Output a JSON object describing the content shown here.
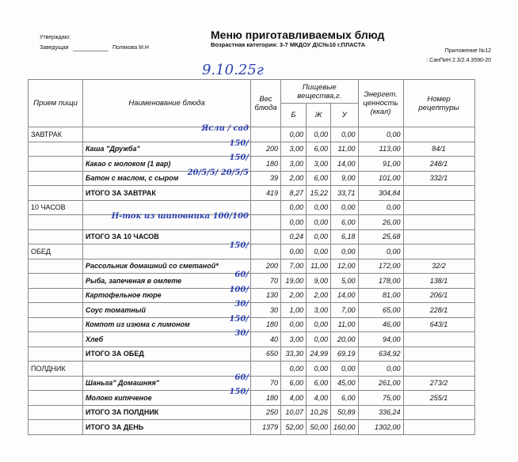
{
  "header": {
    "approve": "Утверждаю:",
    "position": "Заведущая",
    "signer": "Полякова М.Н",
    "title": "Меню приготавливаемых блюд",
    "subtitle": "Возрастная категория: 3-7 МКДОУ Д\\С№10 г.ПЛАСТА",
    "appendix": "Приложение №12",
    "sanpin": ": СанПиН 2.3/2.4.3590-20",
    "handwritten_date": "9.10.25г"
  },
  "columns": {
    "meal": "Прием пищи",
    "dish": "Наименование    блюда",
    "weight": "Вес блюда",
    "nutrients": "Пищевые вещества,г.",
    "b": "Б",
    "zh": "Ж",
    "u": "У",
    "energy": "Энергет. ценность (ккал)",
    "recipe": "Номер рецептуры"
  },
  "rows": [
    {
      "meal": "ЗАВТРАК",
      "name": "",
      "weight": "",
      "b": "0,00",
      "zh": "0,00",
      "u": "0,00",
      "kcal": "0,00",
      "recipe": "",
      "type": "section",
      "note": "Ясли / сад"
    },
    {
      "meal": "",
      "name": "Каша \"Дружба\"",
      "weight": "200",
      "b": "3,00",
      "zh": "6,00",
      "u": "11,00",
      "kcal": "113,00",
      "recipe": "84/1",
      "type": "dish",
      "note": "150/"
    },
    {
      "meal": "",
      "name": "Какао с молоком (1 вар)",
      "weight": "180",
      "b": "3,00",
      "zh": "3,00",
      "u": "14,00",
      "kcal": "91,00",
      "recipe": "248/1",
      "type": "dish",
      "note": "150/"
    },
    {
      "meal": "",
      "name": "Батон с маслом, с сыром",
      "weight": "39",
      "b": "2,00",
      "zh": "6,00",
      "u": "9,00",
      "kcal": "101,00",
      "recipe": "332/1",
      "type": "dish",
      "note": "20/5/5/ 20/5/5"
    },
    {
      "meal": "",
      "name": "ИТОГО ЗА ЗАВТРАК",
      "weight": "419",
      "b": "8,27",
      "zh": "15,22",
      "u": "33,71",
      "kcal": "304,84",
      "recipe": "",
      "type": "total",
      "note": ""
    },
    {
      "meal": "10 ЧАСОВ",
      "name": "",
      "weight": "",
      "b": "0,00",
      "zh": "0,00",
      "u": "0,00",
      "kcal": "0,00",
      "recipe": "",
      "type": "section",
      "note": ""
    },
    {
      "meal": "",
      "name": "",
      "weight": "",
      "b": "0,00",
      "zh": "0,00",
      "u": "6,00",
      "kcal": "26,00",
      "recipe": "",
      "type": "dish",
      "note": "Н-ток из шиповника 100/100"
    },
    {
      "meal": "",
      "name": "ИТОГО ЗА 10 ЧАСОВ",
      "weight": "",
      "b": "0,24",
      "zh": "0,00",
      "u": "6,18",
      "kcal": "25,68",
      "recipe": "",
      "type": "total",
      "note": ""
    },
    {
      "meal": "ОБЕД",
      "name": "",
      "weight": "",
      "b": "0,00",
      "zh": "0,00",
      "u": "0,00",
      "kcal": "0,00",
      "recipe": "",
      "type": "section",
      "note": "150/"
    },
    {
      "meal": "",
      "name": "Рассольник домашний со сметаной*",
      "weight": "200",
      "b": "7,00",
      "zh": "11,00",
      "u": "12,00",
      "kcal": "172,00",
      "recipe": "32/2",
      "type": "dish",
      "note": ""
    },
    {
      "meal": "",
      "name": "Рыба, запеченая в омлете",
      "weight": "70",
      "b": "19,00",
      "zh": "9,00",
      "u": "5,00",
      "kcal": "178,00",
      "recipe": "138/1",
      "type": "dish",
      "note": "60/"
    },
    {
      "meal": "",
      "name": "Картофельное пюре",
      "weight": "130",
      "b": "2,00",
      "zh": "2,00",
      "u": "14,00",
      "kcal": "81,00",
      "recipe": "206/1",
      "type": "dish",
      "note": "100/"
    },
    {
      "meal": "",
      "name": "Соус томатный",
      "weight": "30",
      "b": "1,00",
      "zh": "3,00",
      "u": "7,00",
      "kcal": "65,00",
      "recipe": "228/1",
      "type": "dish",
      "note": "30/"
    },
    {
      "meal": "",
      "name": "Компот из изюма с лимоном",
      "weight": "180",
      "b": "0,00",
      "zh": "0,00",
      "u": "11,00",
      "kcal": "46,00",
      "recipe": "643/1",
      "type": "dish",
      "note": "150/"
    },
    {
      "meal": "",
      "name": "Хлеб",
      "weight": "40",
      "b": "3,00",
      "zh": "0,00",
      "u": "20,00",
      "kcal": "94,00",
      "recipe": "",
      "type": "dish",
      "note": "30/"
    },
    {
      "meal": "",
      "name": "ИТОГО ЗА ОБЕД",
      "weight": "650",
      "b": "33,30",
      "zh": "24,99",
      "u": "69,19",
      "kcal": "634,92",
      "recipe": "",
      "type": "total",
      "note": ""
    },
    {
      "meal": "ПОЛДНИК",
      "name": "",
      "weight": "",
      "b": "0,00",
      "zh": "0,00",
      "u": "0,00",
      "kcal": "0,00",
      "recipe": "",
      "type": "section",
      "note": ""
    },
    {
      "meal": "",
      "name": "Шаньга\" Домашняя\"",
      "weight": "70",
      "b": "6,00",
      "zh": "6,00",
      "u": "45,00",
      "kcal": "261,00",
      "recipe": "273/2",
      "type": "dish",
      "note": "60/"
    },
    {
      "meal": "",
      "name": "Молоко кипяченое",
      "weight": "180",
      "b": "4,00",
      "zh": "4,00",
      "u": "6,00",
      "kcal": "75,00",
      "recipe": "255/1",
      "type": "dish",
      "note": "150/"
    },
    {
      "meal": "",
      "name": "ИТОГО ЗА ПОЛДНИК",
      "weight": "250",
      "b": "10,07",
      "zh": "10,26",
      "u": "50,89",
      "kcal": "336,24",
      "recipe": "",
      "type": "total",
      "note": ""
    },
    {
      "meal": "",
      "name": "ИТОГО ЗА   ДЕНЬ",
      "weight": "1379",
      "b": "52,00",
      "zh": "50,00",
      "u": "160,00",
      "kcal": "1302,00",
      "recipe": "",
      "type": "total",
      "note": ""
    }
  ]
}
